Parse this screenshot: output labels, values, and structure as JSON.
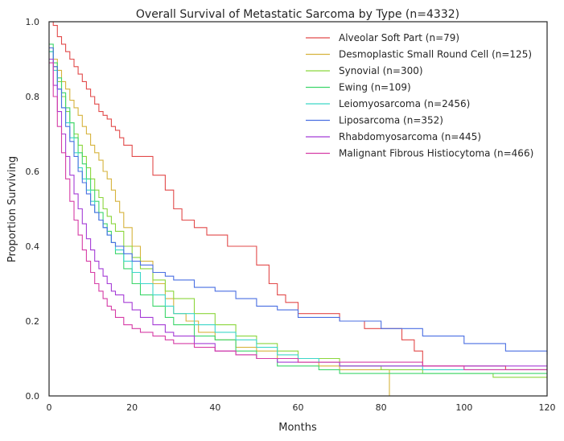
{
  "chart_data": {
    "type": "line",
    "step": true,
    "title": "Overall Survival of Metastatic Sarcoma by Type (n=4332)",
    "xlabel": "Months",
    "ylabel": "Proportion Surviving",
    "xlim": [
      0,
      120
    ],
    "ylim": [
      0,
      1
    ],
    "xticks": [
      "0",
      "20",
      "40",
      "60",
      "80",
      "100",
      "120"
    ],
    "yticks": [
      "0.0",
      "0.2",
      "0.4",
      "0.6",
      "0.8",
      "1.0"
    ],
    "grid": false,
    "legend_position": "top-right",
    "series": [
      {
        "name": "Alveolar Soft Part (n=79)",
        "color": "#e24a4a",
        "x": [
          0,
          1,
          2,
          3,
          4,
          5,
          6,
          7,
          8,
          9,
          10,
          11,
          12,
          13,
          14,
          15,
          16,
          17,
          18,
          20,
          22,
          25,
          28,
          30,
          32,
          35,
          38,
          43,
          48,
          50,
          53,
          55,
          57,
          60,
          65,
          70,
          76,
          82,
          85,
          88,
          90,
          95,
          100,
          110,
          120
        ],
        "y": [
          1.0,
          0.99,
          0.96,
          0.94,
          0.92,
          0.9,
          0.88,
          0.86,
          0.84,
          0.82,
          0.8,
          0.78,
          0.76,
          0.75,
          0.74,
          0.72,
          0.71,
          0.69,
          0.67,
          0.64,
          0.64,
          0.59,
          0.55,
          0.5,
          0.47,
          0.45,
          0.43,
          0.4,
          0.4,
          0.35,
          0.3,
          0.27,
          0.25,
          0.22,
          0.22,
          0.2,
          0.18,
          0.18,
          0.15,
          0.12,
          0.08,
          0.08,
          0.08,
          0.07,
          0.07
        ]
      },
      {
        "name": "Desmoplastic Small Round Cell (n=125)",
        "color": "#d6b33c",
        "x": [
          0,
          1,
          2,
          3,
          4,
          5,
          6,
          7,
          8,
          9,
          10,
          11,
          12,
          13,
          14,
          15,
          16,
          17,
          18,
          20,
          22,
          25,
          28,
          30,
          33,
          36,
          40,
          45,
          50,
          55,
          60,
          65,
          70,
          75,
          80,
          82,
          120
        ],
        "y": [
          0.93,
          0.9,
          0.87,
          0.84,
          0.82,
          0.79,
          0.77,
          0.75,
          0.72,
          0.7,
          0.67,
          0.65,
          0.63,
          0.6,
          0.58,
          0.55,
          0.52,
          0.49,
          0.45,
          0.4,
          0.36,
          0.3,
          0.26,
          0.22,
          0.2,
          0.17,
          0.15,
          0.13,
          0.12,
          0.1,
          0.09,
          0.08,
          0.07,
          0.07,
          0.07,
          0.0,
          0.0
        ]
      },
      {
        "name": "Synovial (n=300)",
        "color": "#8bd63c",
        "x": [
          0,
          1,
          2,
          3,
          4,
          5,
          6,
          7,
          8,
          9,
          10,
          11,
          12,
          13,
          14,
          15,
          16,
          18,
          20,
          22,
          25,
          28,
          30,
          35,
          40,
          45,
          50,
          55,
          60,
          70,
          80,
          90,
          100,
          107,
          110,
          120
        ],
        "y": [
          0.92,
          0.88,
          0.84,
          0.8,
          0.76,
          0.73,
          0.7,
          0.67,
          0.64,
          0.61,
          0.58,
          0.55,
          0.53,
          0.5,
          0.48,
          0.46,
          0.44,
          0.4,
          0.37,
          0.34,
          0.31,
          0.28,
          0.26,
          0.22,
          0.19,
          0.16,
          0.14,
          0.12,
          0.1,
          0.08,
          0.07,
          0.06,
          0.06,
          0.05,
          0.05,
          0.05
        ]
      },
      {
        "name": "Ewing (n=109)",
        "color": "#3cd66a",
        "x": [
          0,
          1,
          2,
          3,
          4,
          5,
          6,
          7,
          8,
          9,
          10,
          11,
          12,
          13,
          14,
          15,
          16,
          18,
          20,
          22,
          25,
          28,
          30,
          35,
          40,
          45,
          50,
          55,
          60,
          65,
          70,
          80,
          100,
          110,
          120
        ],
        "y": [
          0.94,
          0.89,
          0.85,
          0.81,
          0.77,
          0.73,
          0.69,
          0.65,
          0.62,
          0.58,
          0.55,
          0.52,
          0.49,
          0.46,
          0.44,
          0.41,
          0.38,
          0.34,
          0.3,
          0.27,
          0.24,
          0.21,
          0.19,
          0.16,
          0.15,
          0.12,
          0.1,
          0.08,
          0.08,
          0.07,
          0.06,
          0.06,
          0.06,
          0.06,
          0.06
        ]
      },
      {
        "name": "Leiomyosarcoma (n=2456)",
        "color": "#3cd6c8",
        "x": [
          0,
          1,
          2,
          3,
          4,
          5,
          6,
          7,
          8,
          9,
          10,
          11,
          12,
          13,
          14,
          15,
          16,
          18,
          20,
          22,
          25,
          28,
          30,
          35,
          40,
          45,
          50,
          55,
          60,
          65,
          70,
          80,
          90,
          100,
          110,
          120
        ],
        "y": [
          0.92,
          0.87,
          0.82,
          0.77,
          0.73,
          0.69,
          0.65,
          0.61,
          0.58,
          0.55,
          0.52,
          0.49,
          0.47,
          0.45,
          0.43,
          0.41,
          0.39,
          0.36,
          0.33,
          0.3,
          0.27,
          0.24,
          0.22,
          0.19,
          0.17,
          0.15,
          0.13,
          0.11,
          0.1,
          0.09,
          0.08,
          0.08,
          0.07,
          0.07,
          0.07,
          0.07
        ]
      },
      {
        "name": "Liposarcoma (n=352)",
        "color": "#4a6fe2",
        "x": [
          0,
          1,
          2,
          3,
          4,
          5,
          6,
          7,
          8,
          9,
          10,
          11,
          12,
          13,
          14,
          15,
          16,
          18,
          20,
          22,
          25,
          28,
          30,
          35,
          40,
          45,
          50,
          55,
          60,
          70,
          80,
          90,
          100,
          110,
          120
        ],
        "y": [
          0.93,
          0.88,
          0.82,
          0.77,
          0.72,
          0.68,
          0.64,
          0.6,
          0.57,
          0.54,
          0.51,
          0.49,
          0.47,
          0.45,
          0.43,
          0.41,
          0.4,
          0.38,
          0.36,
          0.35,
          0.33,
          0.32,
          0.31,
          0.29,
          0.28,
          0.26,
          0.24,
          0.23,
          0.21,
          0.2,
          0.18,
          0.16,
          0.14,
          0.12,
          0.11
        ]
      },
      {
        "name": "Rhabdomyosarcoma (n=445)",
        "color": "#a53cd6",
        "x": [
          0,
          1,
          2,
          3,
          4,
          5,
          6,
          7,
          8,
          9,
          10,
          11,
          12,
          13,
          14,
          15,
          16,
          18,
          20,
          22,
          25,
          28,
          30,
          35,
          40,
          45,
          50,
          55,
          60,
          70,
          80,
          90,
          100,
          110,
          120
        ],
        "y": [
          0.9,
          0.83,
          0.76,
          0.7,
          0.64,
          0.59,
          0.54,
          0.5,
          0.46,
          0.42,
          0.39,
          0.36,
          0.34,
          0.32,
          0.3,
          0.28,
          0.27,
          0.25,
          0.23,
          0.21,
          0.19,
          0.17,
          0.16,
          0.14,
          0.12,
          0.11,
          0.1,
          0.09,
          0.09,
          0.08,
          0.08,
          0.08,
          0.08,
          0.08,
          0.08
        ]
      },
      {
        "name": "Malignant Fibrous Histiocytoma (n=466)",
        "color": "#d63ca6",
        "x": [
          0,
          1,
          2,
          3,
          4,
          5,
          6,
          7,
          8,
          9,
          10,
          11,
          12,
          13,
          14,
          15,
          16,
          18,
          20,
          22,
          25,
          28,
          30,
          35,
          40,
          45,
          50,
          55,
          60,
          70,
          80,
          90,
          100,
          110,
          120
        ],
        "y": [
          0.89,
          0.8,
          0.72,
          0.65,
          0.58,
          0.52,
          0.47,
          0.43,
          0.39,
          0.36,
          0.33,
          0.3,
          0.28,
          0.26,
          0.24,
          0.23,
          0.21,
          0.19,
          0.18,
          0.17,
          0.16,
          0.15,
          0.14,
          0.13,
          0.12,
          0.11,
          0.1,
          0.1,
          0.09,
          0.09,
          0.09,
          0.08,
          0.07,
          0.07,
          0.07
        ]
      }
    ]
  }
}
